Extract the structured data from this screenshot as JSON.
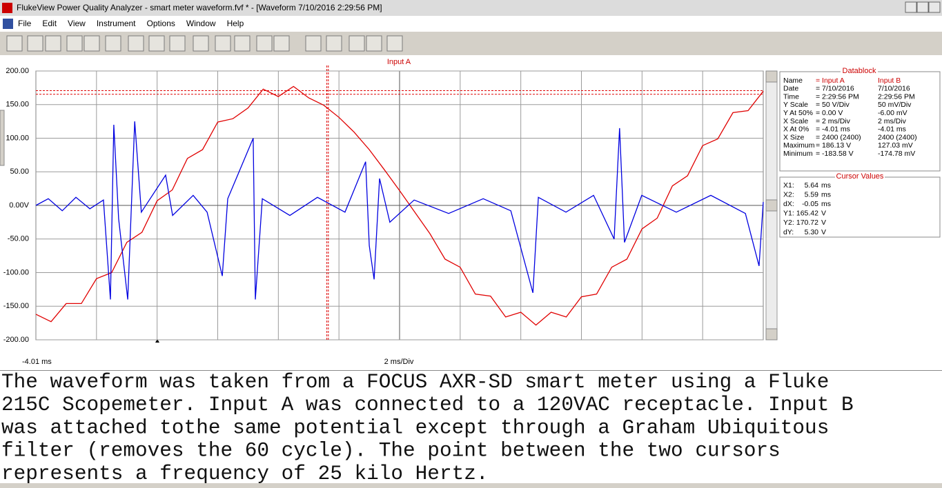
{
  "window": {
    "title": "FlukeView Power Quality Analyzer - smart meter waveform.fvf * - [Waveform  7/10/2016  2:29:56 PM]",
    "menu": [
      "File",
      "Edit",
      "View",
      "Instrument",
      "Options",
      "Window",
      "Help"
    ]
  },
  "chart_data": {
    "type": "line",
    "title": "Input A",
    "grid": true,
    "ylim": [
      -200,
      200
    ],
    "yticks": [
      {
        "value": 200,
        "label": "200.00"
      },
      {
        "value": 150,
        "label": "150.00"
      },
      {
        "value": 100,
        "label": "100.00"
      },
      {
        "value": 50,
        "label": "50.00"
      },
      {
        "value": 0,
        "label": "0.00V"
      },
      {
        "value": -50,
        "label": "-50.00"
      },
      {
        "value": -100,
        "label": "-100.00"
      },
      {
        "value": -150,
        "label": "-150.00"
      },
      {
        "value": -200,
        "label": "-200.00"
      }
    ],
    "xlim": [
      -4.01,
      19.99
    ],
    "x_start_label": "-4.01 ms",
    "x_scale_label": "2 ms/Div",
    "series": [
      {
        "color": "#e00000",
        "x": [
          -4.01,
          -3.51,
          -3.01,
          -2.51,
          -2.01,
          -1.51,
          -1.01,
          -0.51,
          -0.01,
          0.49,
          0.99,
          1.49,
          1.99,
          2.49,
          2.99,
          3.49,
          3.99,
          4.49,
          4.99,
          5.49,
          5.99,
          6.49,
          6.99,
          7.49,
          7.99,
          8.49,
          8.99,
          9.49,
          9.99,
          10.49,
          10.99,
          11.49,
          11.99,
          12.49,
          12.99,
          13.49,
          13.99,
          14.49,
          14.99,
          15.49,
          15.99,
          16.49,
          16.99,
          17.49,
          17.99,
          18.49,
          18.99,
          19.49,
          19.99
        ],
        "values": [
          -162,
          -173,
          -146,
          -146,
          -109,
          -100,
          -55,
          -40,
          7,
          23,
          70,
          83,
          124,
          129,
          145,
          173,
          162,
          177,
          160,
          149,
          131,
          109,
          83,
          53,
          22,
          -10,
          -42,
          -80,
          -92,
          -132,
          -135,
          -166,
          -159,
          -178,
          -159,
          -166,
          -136,
          -132,
          -92,
          -80,
          -35,
          -19,
          29,
          44,
          89,
          99,
          138,
          141,
          170
        ]
      },
      {
        "color": "#0000e0",
        "x": [
          -4.01,
          -3.6,
          -3.14,
          -2.69,
          -2.23,
          -1.78,
          -1.55,
          -1.44,
          -1.28,
          -0.98,
          -0.75,
          -0.53,
          0.27,
          0.5,
          1.18,
          1.64,
          2.14,
          2.32,
          3.16,
          3.23,
          3.46,
          4.37,
          5.28,
          6.19,
          6.87,
          6.99,
          7.15,
          7.33,
          7.67,
          8.47,
          9.61,
          10.75,
          11.66,
          12.39,
          12.57,
          13.48,
          14.39,
          15.07,
          15.25,
          15.41,
          15.98,
          17.12,
          18.26,
          19.4,
          19.85,
          19.99
        ],
        "values": [
          0,
          10,
          -8,
          12,
          -5,
          8,
          -140,
          120,
          -20,
          -140,
          125,
          -10,
          45,
          -15,
          15,
          -10,
          -105,
          10,
          100,
          -140,
          10,
          -15,
          12,
          -10,
          65,
          -60,
          -110,
          40,
          -25,
          8,
          -12,
          10,
          -8,
          -130,
          12,
          -10,
          15,
          -50,
          115,
          -55,
          15,
          -10,
          15,
          -12,
          -90,
          5
        ]
      }
    ]
  },
  "datablock": {
    "title": "Datablock",
    "rows": [
      {
        "label": "Name",
        "a": "= Input A",
        "b": "Input B"
      },
      {
        "label": "Date",
        "a": "= 7/10/2016",
        "b": "7/10/2016"
      },
      {
        "label": "Time",
        "a": "= 2:29:56 PM",
        "b": "2:29:56 PM"
      },
      {
        "label": "Y Scale",
        "a": "= 50 V/Div",
        "b": "50 mV/Div"
      },
      {
        "label": "Y At 50%",
        "a": "= 0.00 V",
        "b": "-6.00 mV"
      },
      {
        "label": "X Scale",
        "a": "= 2 ms/Div",
        "b": "2 ms/Div"
      },
      {
        "label": "X At 0%",
        "a": "= -4.01 ms",
        "b": "-4.01 ms"
      },
      {
        "label": "X Size",
        "a": "= 2400 (2400)",
        "b": "2400 (2400)"
      },
      {
        "label": "Maximum",
        "a": "= 186.13 V",
        "b": "127.03 mV"
      },
      {
        "label": "Minimum",
        "a": "= -183.58 V",
        "b": "-174.78 mV"
      }
    ]
  },
  "cursor_values": {
    "title": "Cursor Values",
    "rows": [
      {
        "label": "X1:",
        "value": 5.64,
        "unit": "ms"
      },
      {
        "label": "X2:",
        "value": 5.59,
        "unit": "ms"
      },
      {
        "label": "dX:",
        "value": -0.05,
        "unit": "ms"
      },
      {
        "label": "Y1:",
        "value": 165.42,
        "unit": "V"
      },
      {
        "label": "Y2:",
        "value": 170.72,
        "unit": "V"
      },
      {
        "label": "dY:",
        "value": 5.3,
        "value_label": "5.30",
        "unit": "V"
      }
    ]
  },
  "caption": {
    "lines": [
      "The waveform was taken from a FOCUS AXR-SD smart meter using a Fluke",
      "215C Scopemeter. Input A was connected to a 120VAC receptacle. Input B",
      "was attached tothe same potential except through a Graham Ubiquitous",
      "filter (removes the 60 cycle). The point between the two cursors",
      "represents a frequency of 25 kilo Hertz."
    ]
  }
}
